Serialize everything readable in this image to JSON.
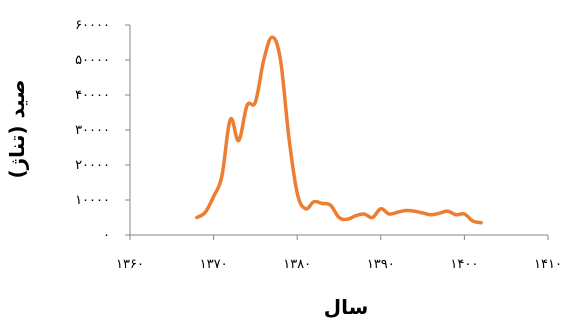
{
  "chart_data": {
    "type": "line",
    "xlabel": "سال",
    "ylabel": "صید (تناژ)",
    "xlim": [
      1360,
      1410
    ],
    "ylim": [
      0,
      60000
    ],
    "x_ticks": [
      1360,
      1370,
      1380,
      1390,
      1400,
      1410
    ],
    "x_tick_labels": [
      "۱۳۶۰",
      "۱۳۷۰",
      "۱۳۸۰",
      "۱۳۹۰",
      "۱۴۰۰",
      "۱۴۱۰"
    ],
    "y_ticks": [
      0,
      10000,
      20000,
      30000,
      40000,
      50000,
      60000
    ],
    "y_tick_labels": [
      "۰",
      "۱۰۰۰۰",
      "۲۰۰۰۰",
      "۳۰۰۰۰",
      "۴۰۰۰۰",
      "۵۰۰۰۰",
      "۶۰۰۰۰"
    ],
    "grid": false,
    "legend": "none",
    "series": [
      {
        "color": "#ED7D31",
        "x": [
          1368,
          1369,
          1370,
          1371,
          1372,
          1373,
          1374,
          1375,
          1376,
          1377,
          1378,
          1379,
          1380,
          1381,
          1382,
          1383,
          1384,
          1385,
          1386,
          1387,
          1388,
          1389,
          1390,
          1391,
          1392,
          1393,
          1394,
          1395,
          1396,
          1397,
          1398,
          1399,
          1400,
          1401,
          1402
        ],
        "values": [
          5000,
          6500,
          11000,
          17000,
          33000,
          27000,
          37000,
          38000,
          50000,
          56500,
          50000,
          28000,
          12000,
          7500,
          9500,
          9000,
          8500,
          5000,
          4500,
          5500,
          6000,
          5000,
          7500,
          6000,
          6500,
          7000,
          6800,
          6300,
          5800,
          6200,
          6800,
          5800,
          6000,
          4000,
          3500
        ]
      }
    ]
  }
}
